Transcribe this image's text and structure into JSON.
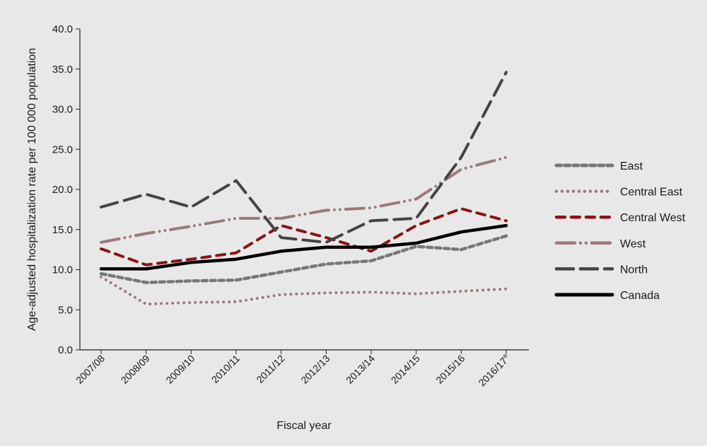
{
  "chart_data": {
    "type": "line",
    "title": "",
    "xlabel": "Fiscal year",
    "ylabel": "Age-adjusted hospitalization rate per 100 000 population",
    "ylim": [
      0,
      40
    ],
    "yticks": [
      "0.0",
      "5.0",
      "10.0",
      "15.0",
      "20.0",
      "25.0",
      "30.0",
      "35.0",
      "40.0"
    ],
    "categories": [
      "2007/08",
      "2008/09",
      "2009/10",
      "2010/11",
      "2011/12",
      "2012/13",
      "2013/14",
      "2014/15",
      "2015/16",
      "2016/17"
    ],
    "last_category_superscript": "a",
    "grid": false,
    "legend_position": "right",
    "series": [
      {
        "name": "East",
        "color": "#777777",
        "style": "short-dash",
        "values": [
          9.5,
          8.4,
          8.6,
          8.7,
          9.7,
          10.7,
          11.1,
          12.9,
          12.5,
          14.2
        ]
      },
      {
        "name": "Central East",
        "color": "#9a7a7a",
        "style": "dotted",
        "values": [
          9.1,
          5.7,
          5.9,
          6.0,
          6.9,
          7.1,
          7.2,
          7.0,
          7.3,
          7.6
        ]
      },
      {
        "name": "Central West",
        "color": "#8b1414",
        "style": "dash",
        "values": [
          12.6,
          10.6,
          11.3,
          12.1,
          15.5,
          14.0,
          12.3,
          15.5,
          17.6,
          16.1
        ]
      },
      {
        "name": "West",
        "color": "#9a7a7a",
        "style": "dash-dot-dot",
        "values": [
          13.4,
          14.5,
          15.4,
          16.4,
          16.4,
          17.4,
          17.7,
          18.8,
          22.5,
          24.0
        ]
      },
      {
        "name": "North",
        "color": "#444444",
        "style": "long-dash",
        "values": [
          17.8,
          19.4,
          17.8,
          21.1,
          14.0,
          13.4,
          16.1,
          16.4,
          24.0,
          34.6
        ]
      },
      {
        "name": "Canada",
        "color": "#000000",
        "style": "solid",
        "values": [
          10.1,
          10.1,
          10.9,
          11.3,
          12.3,
          12.8,
          12.8,
          13.3,
          14.7,
          15.5
        ]
      }
    ]
  }
}
